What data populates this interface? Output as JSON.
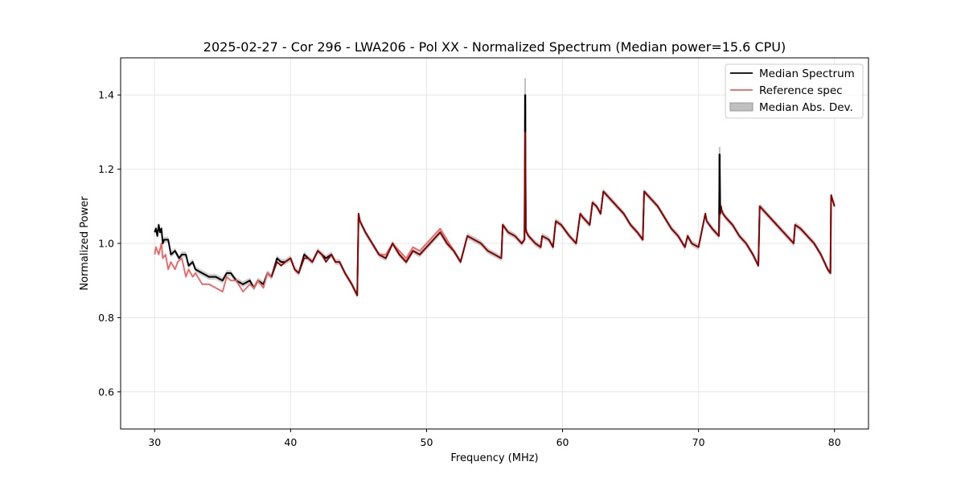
{
  "chart_data": {
    "type": "line",
    "title": "2025-02-27 - Cor 296 - LWA206 - Pol XX - Normalized Spectrum (Median power=15.6 CPU)",
    "xlabel": "Frequency (MHz)",
    "ylabel": "Normalized Power",
    "xlim": [
      27.5,
      82.5
    ],
    "ylim": [
      0.5,
      1.5
    ],
    "xticks": [
      30,
      40,
      50,
      60,
      70,
      80
    ],
    "yticks": [
      0.6,
      0.8,
      1.0,
      1.2,
      1.4
    ],
    "xtick_labels": [
      "30",
      "40",
      "50",
      "60",
      "70",
      "80"
    ],
    "ytick_labels": [
      "0.6",
      "0.8",
      "1.0",
      "1.2",
      "1.4"
    ],
    "grid": true,
    "legend_position": "top-right",
    "legend": [
      "Median Spectrum",
      "Reference spec",
      "Median Abs. Dev."
    ],
    "colors": {
      "median": "#000000",
      "reference": "#f06060",
      "overlap": "#8b0000",
      "mad_fill": "#c0c0c0",
      "grid": "#e6e6e6"
    },
    "series": [
      {
        "name": "Median Spectrum",
        "x": [
          30.0,
          30.1,
          30.2,
          30.3,
          30.4,
          30.5,
          30.6,
          30.7,
          31.0,
          31.2,
          31.5,
          31.8,
          32.0,
          32.3,
          32.5,
          32.8,
          33.0,
          33.5,
          34.0,
          34.5,
          35.0,
          35.3,
          35.6,
          36.0,
          36.5,
          37.0,
          37.3,
          37.6,
          38.0,
          38.3,
          38.6,
          39.0,
          39.3,
          39.6,
          40.0,
          40.3,
          40.6,
          41.0,
          41.3,
          41.6,
          42.0,
          42.3,
          42.6,
          43.0,
          43.3,
          43.6,
          44.0,
          44.5,
          44.9,
          45.0,
          45.1,
          45.5,
          46.0,
          46.5,
          47.0,
          47.5,
          48.0,
          48.5,
          49.0,
          49.5,
          50.0,
          50.5,
          51.0,
          51.5,
          52.0,
          52.5,
          53.0,
          53.5,
          54.0,
          54.5,
          55.0,
          55.5,
          55.6,
          56.0,
          56.5,
          57.0,
          57.2,
          57.25,
          57.3,
          57.35,
          57.5,
          58.0,
          58.4,
          58.5,
          59.0,
          59.3,
          59.5,
          59.9,
          60.5,
          61.0,
          61.3,
          61.5,
          62.0,
          62.2,
          62.5,
          62.8,
          63.0,
          63.5,
          64.0,
          64.5,
          65.0,
          65.5,
          65.9,
          66.0,
          66.5,
          67.0,
          67.5,
          68.0,
          68.5,
          69.0,
          69.2,
          69.5,
          70.0,
          70.5,
          70.6,
          71.0,
          71.5,
          71.55,
          71.6,
          71.65,
          71.7,
          71.8,
          72.0,
          72.5,
          73.0,
          73.5,
          74.0,
          74.4,
          74.5,
          75.0,
          75.5,
          76.0,
          76.5,
          77.0,
          77.1,
          77.5,
          78.0,
          78.5,
          79.0,
          79.5,
          79.7,
          79.75,
          80.0
        ],
        "values": [
          1.03,
          1.04,
          1.02,
          1.05,
          1.03,
          1.04,
          1.0,
          1.01,
          1.01,
          0.97,
          0.98,
          0.96,
          0.97,
          0.97,
          0.94,
          0.95,
          0.93,
          0.92,
          0.91,
          0.91,
          0.9,
          0.92,
          0.92,
          0.9,
          0.89,
          0.9,
          0.88,
          0.9,
          0.89,
          0.92,
          0.91,
          0.96,
          0.95,
          0.95,
          0.96,
          0.93,
          0.92,
          0.97,
          0.96,
          0.95,
          0.98,
          0.97,
          0.96,
          0.97,
          0.95,
          0.95,
          0.92,
          0.89,
          0.86,
          1.08,
          1.06,
          1.03,
          1.0,
          0.97,
          0.96,
          1.0,
          0.97,
          0.95,
          0.98,
          0.97,
          0.99,
          1.01,
          1.03,
          1.0,
          0.98,
          0.95,
          1.02,
          1.01,
          1.0,
          0.98,
          0.97,
          0.96,
          1.05,
          1.03,
          1.02,
          1.0,
          1.01,
          1.4,
          1.04,
          1.03,
          1.02,
          1.0,
          0.99,
          1.02,
          1.01,
          0.99,
          1.06,
          1.05,
          1.02,
          1.0,
          1.08,
          1.07,
          1.05,
          1.11,
          1.1,
          1.08,
          1.14,
          1.12,
          1.1,
          1.08,
          1.05,
          1.03,
          1.01,
          1.14,
          1.12,
          1.1,
          1.07,
          1.04,
          1.02,
          0.99,
          1.02,
          1.0,
          0.99,
          1.08,
          1.06,
          1.04,
          1.02,
          1.24,
          1.08,
          1.1,
          1.09,
          1.08,
          1.07,
          1.05,
          1.02,
          1.0,
          0.97,
          0.94,
          1.1,
          1.08,
          1.06,
          1.04,
          1.02,
          1.0,
          1.05,
          1.04,
          1.02,
          1.0,
          0.97,
          0.93,
          0.92,
          1.13,
          1.1
        ]
      },
      {
        "name": "Reference spec",
        "x": [
          30.0,
          30.1,
          30.3,
          30.5,
          30.6,
          30.8,
          31.0,
          31.2,
          31.5,
          31.7,
          32.0,
          32.3,
          32.5,
          32.8,
          33.0,
          33.5,
          34.0,
          34.5,
          35.0,
          35.3,
          35.6,
          36.0,
          36.5,
          37.0,
          37.3,
          37.6,
          38.0,
          38.3,
          38.6,
          39.0,
          39.3,
          39.6,
          40.0,
          40.3,
          40.6,
          41.0,
          41.3,
          41.6,
          42.0,
          42.3,
          42.6,
          43.0,
          43.3,
          43.6,
          44.0,
          44.5,
          44.9,
          45.0,
          45.1,
          45.5,
          46.0,
          46.5,
          47.0,
          47.5,
          48.0,
          48.5,
          49.0,
          49.5,
          50.0,
          50.5,
          51.0,
          51.5,
          52.0,
          52.5,
          53.0,
          53.5,
          54.0,
          54.5,
          55.0,
          55.5,
          55.6,
          56.0,
          56.5,
          57.0,
          57.2,
          57.25,
          57.3,
          57.35,
          57.5,
          58.0,
          58.4,
          58.5,
          59.0,
          59.3,
          59.5,
          59.9,
          60.5,
          61.0,
          61.3,
          61.5,
          62.0,
          62.2,
          62.5,
          62.8,
          63.0,
          63.5,
          64.0,
          64.5,
          65.0,
          65.5,
          65.9,
          66.0,
          66.5,
          67.0,
          67.5,
          68.0,
          68.5,
          69.0,
          69.2,
          69.5,
          70.0,
          70.5,
          70.6,
          71.0,
          71.5,
          71.55,
          71.6,
          71.65,
          71.7,
          71.8,
          72.0,
          72.5,
          73.0,
          73.5,
          74.0,
          74.4,
          74.5,
          75.0,
          75.5,
          76.0,
          76.5,
          77.0,
          77.1,
          77.5,
          78.0,
          78.5,
          79.0,
          79.5,
          79.7,
          79.75,
          80.0
        ],
        "values": [
          0.97,
          0.99,
          0.97,
          1.0,
          0.96,
          0.97,
          0.93,
          0.95,
          0.93,
          0.95,
          0.96,
          0.91,
          0.93,
          0.91,
          0.92,
          0.89,
          0.89,
          0.88,
          0.87,
          0.91,
          0.9,
          0.9,
          0.87,
          0.89,
          0.88,
          0.9,
          0.88,
          0.92,
          0.91,
          0.95,
          0.94,
          0.95,
          0.96,
          0.93,
          0.92,
          0.96,
          0.96,
          0.95,
          0.98,
          0.97,
          0.95,
          0.97,
          0.95,
          0.95,
          0.92,
          0.89,
          0.86,
          1.08,
          1.06,
          1.03,
          1.0,
          0.97,
          0.97,
          1.0,
          0.98,
          0.96,
          0.99,
          0.98,
          1.0,
          1.02,
          1.04,
          1.01,
          0.98,
          0.95,
          1.02,
          1.01,
          1.0,
          0.98,
          0.97,
          0.96,
          1.05,
          1.03,
          1.02,
          1.0,
          1.01,
          1.3,
          1.04,
          1.03,
          1.02,
          1.0,
          0.99,
          1.02,
          1.01,
          0.99,
          1.06,
          1.05,
          1.02,
          1.0,
          1.08,
          1.07,
          1.05,
          1.11,
          1.1,
          1.08,
          1.14,
          1.12,
          1.1,
          1.08,
          1.05,
          1.03,
          1.01,
          1.14,
          1.12,
          1.1,
          1.07,
          1.04,
          1.02,
          0.99,
          1.02,
          1.0,
          0.99,
          1.08,
          1.06,
          1.04,
          1.02,
          1.08,
          1.08,
          1.1,
          1.09,
          1.08,
          1.07,
          1.05,
          1.02,
          1.0,
          0.97,
          0.94,
          1.1,
          1.08,
          1.06,
          1.04,
          1.02,
          1.0,
          1.05,
          1.04,
          1.02,
          1.0,
          0.97,
          0.93,
          0.92,
          1.13,
          1.1
        ]
      }
    ],
    "mad_band_halfwidth": 0.008,
    "mad_spikes": [
      {
        "x": 57.25,
        "high": 1.445
      },
      {
        "x": 71.55,
        "high": 1.26
      }
    ]
  }
}
